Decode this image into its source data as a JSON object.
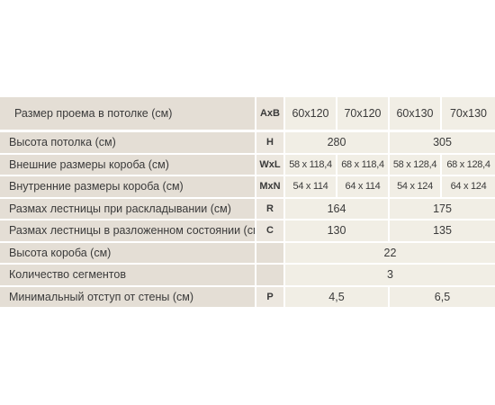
{
  "table": {
    "header": {
      "label": "Размер проема в потолке (см)",
      "symbol": "AxB",
      "values": [
        "60x120",
        "70x120",
        "60x130",
        "70x130"
      ]
    },
    "rows": [
      {
        "label": "Высота потолка (см)",
        "symbol": "H",
        "values": [
          "280",
          "305"
        ]
      },
      {
        "label": "Внешние размеры короба (см)",
        "symbol": "WxL",
        "values": [
          "58 x 118,4",
          "68 x 118,4",
          "58 x 128,4",
          "68 x 128,4"
        ]
      },
      {
        "label": "Внутренние размеры короба (см)",
        "symbol": "MxN",
        "values": [
          "54 x 114",
          "64 x 114",
          "54 x 124",
          "64 x 124"
        ]
      },
      {
        "label": "Размах лестницы при раскладывании (см)",
        "symbol": "R",
        "values": [
          "164",
          "175"
        ]
      },
      {
        "label": "Размах лестницы в разложенном состоянии (см)",
        "symbol": "C",
        "values": [
          "130",
          "135"
        ]
      },
      {
        "label": "Высота короба (см)",
        "symbol": "",
        "values": [
          "22"
        ]
      },
      {
        "label": "Количество сегментов",
        "symbol": "",
        "values": [
          "3"
        ]
      },
      {
        "label": "Минимальный отступ от стены (см)",
        "symbol": "P",
        "values": [
          "4,5",
          "6,5"
        ]
      }
    ]
  }
}
